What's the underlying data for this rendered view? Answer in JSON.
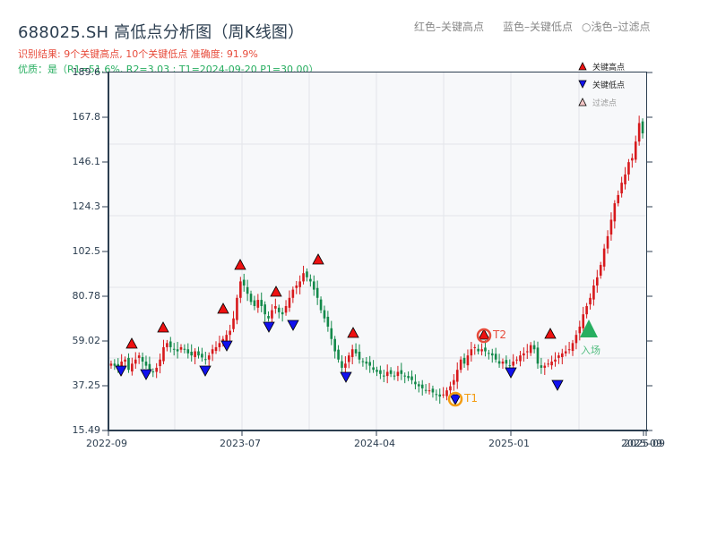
{
  "header": {
    "title": "688025.SH 高低点分析图（周K线图）",
    "result_line": "识别结果: 9个关键高点, 10个关键低点   准确度: 91.9%",
    "quality_line": "优质：是（R1=51.6%, R2=3.03 ; T1=2024-09-20 P1=30.00）"
  },
  "top_legend": {
    "red_label": "红色–关键高点",
    "blue_label": "蓝色–关键低点",
    "light_label": "○浅色–过滤点"
  },
  "plot_legend": {
    "items": [
      {
        "label": "关键高点",
        "marker": "triangle-up",
        "color": "#ee1111"
      },
      {
        "label": "关键低点",
        "marker": "triangle-down",
        "color": "#1111ee"
      },
      {
        "label": "过滤点",
        "marker": "triangle-up-outline",
        "color": "#f5c6c6"
      }
    ]
  },
  "annotations": {
    "t1_label": "T1",
    "t2_label": "T2",
    "entry_label": "入场"
  },
  "colors": {
    "up": "#d7191c",
    "down": "#13894a",
    "high_marker": "#ee1111",
    "low_marker": "#1111ee",
    "t1_circle": "#f39c12",
    "t2_circle": "#e74c3c",
    "entry_marker": "#27ae60"
  },
  "chart_data": {
    "type": "candlestick",
    "title": "688025.SH 高低点分析图（周K线图）",
    "xlabel": "",
    "ylabel": "",
    "ylim": [
      15.49,
      189.6
    ],
    "yticks": [
      "15.49",
      "37.25",
      "59.02",
      "80.78",
      "102.5",
      "124.3",
      "146.1",
      "167.8",
      "189.6"
    ],
    "xticks": [
      "2022-09",
      "2023-07",
      "2024-04",
      "2025-01",
      "2025-09",
      "2025-09"
    ],
    "grid": true,
    "legend_position": "upper right",
    "key_highs": [
      {
        "approx_date": "2022-10",
        "price": 53
      },
      {
        "approx_date": "2022-12",
        "price": 62
      },
      {
        "approx_date": "2023-05",
        "price": 72
      },
      {
        "approx_date": "2023-07",
        "price": 92
      },
      {
        "approx_date": "2023-09",
        "price": 78
      },
      {
        "approx_date": "2023-11",
        "price": 94
      },
      {
        "approx_date": "2024-02",
        "price": 58
      },
      {
        "approx_date": "2024-11",
        "price": 57
      },
      {
        "approx_date": "2025-04",
        "price": 57
      }
    ],
    "key_lows": [
      {
        "approx_date": "2022-09",
        "price": 43
      },
      {
        "approx_date": "2022-11",
        "price": 41
      },
      {
        "approx_date": "2023-04",
        "price": 43
      },
      {
        "approx_date": "2023-06",
        "price": 54
      },
      {
        "approx_date": "2023-08",
        "price": 64
      },
      {
        "approx_date": "2023-10",
        "price": 65
      },
      {
        "approx_date": "2024-02",
        "price": 40
      },
      {
        "approx_date": "2024-09",
        "price": 30
      },
      {
        "approx_date": "2025-01",
        "price": 43
      },
      {
        "approx_date": "2025-04",
        "price": 38
      }
    ],
    "T1": {
      "date": "2024-09-20",
      "price": 30.0
    },
    "T2": {
      "approx_date": "2024-11",
      "price": 57
    },
    "entry": {
      "approx_date": "2025-06",
      "price": 60
    },
    "close_series_approx": [
      48,
      47,
      46,
      49,
      50,
      45,
      48,
      50,
      52,
      49,
      47,
      45,
      44,
      46,
      50,
      56,
      58,
      56,
      55,
      54,
      56,
      55,
      53,
      52,
      54,
      52,
      51,
      50,
      52,
      55,
      56,
      58,
      60,
      62,
      64,
      70,
      80,
      88,
      86,
      82,
      78,
      76,
      79,
      76,
      72,
      70,
      74,
      76,
      73,
      72,
      76,
      80,
      84,
      86,
      88,
      92,
      90,
      88,
      84,
      80,
      74,
      70,
      66,
      60,
      54,
      50,
      46,
      48,
      52,
      55,
      53,
      50,
      49,
      48,
      47,
      45,
      44,
      43,
      42,
      44,
      43,
      42,
      44,
      43,
      42,
      41,
      40,
      38,
      37,
      36,
      35,
      35,
      34,
      33,
      32,
      33,
      35,
      37,
      40,
      45,
      50,
      48,
      52,
      55,
      56,
      54,
      55,
      54,
      53,
      52,
      50,
      48,
      49,
      48,
      47,
      49,
      50,
      52,
      53,
      54,
      57,
      55,
      48,
      46,
      47,
      48,
      49,
      50,
      52,
      53,
      54,
      55,
      58,
      62,
      66,
      72,
      76,
      80,
      86,
      90,
      96,
      104,
      110,
      118,
      126,
      130,
      136,
      140,
      146,
      148,
      156,
      165,
      160
    ]
  }
}
